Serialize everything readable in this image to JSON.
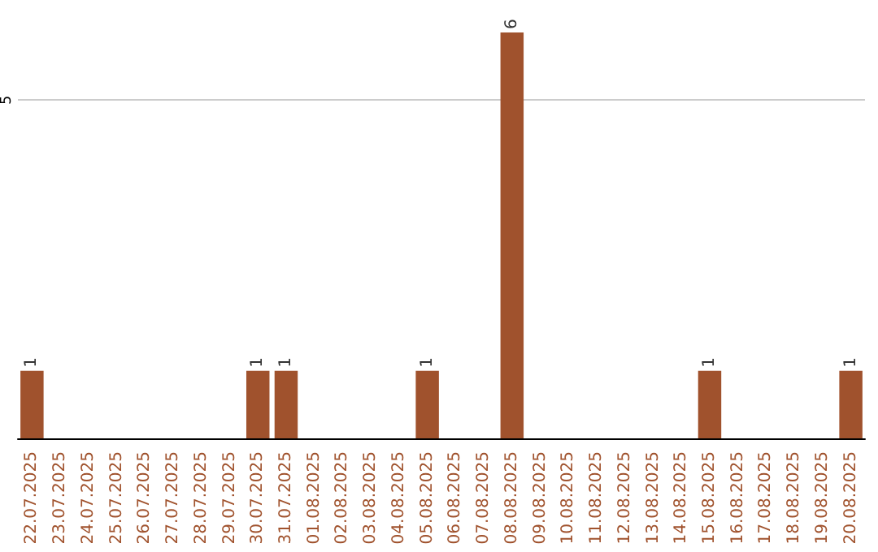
{
  "chart_data": {
    "type": "bar",
    "categories": [
      "22.07.2025",
      "23.07.2025",
      "24.07.2025",
      "25.07.2025",
      "26.07.2025",
      "27.07.2025",
      "28.07.2025",
      "29.07.2025",
      "30.07.2025",
      "31.07.2025",
      "01.08.2025",
      "02.08.2025",
      "03.08.2025",
      "04.08.2025",
      "05.08.2025",
      "06.08.2025",
      "07.08.2025",
      "08.08.2025",
      "09.08.2025",
      "10.08.2025",
      "11.08.2025",
      "12.08.2025",
      "13.08.2025",
      "14.08.2025",
      "15.08.2025",
      "16.08.2025",
      "17.08.2025",
      "18.08.2025",
      "19.08.2025",
      "20.08.2025"
    ],
    "values": [
      1,
      0,
      0,
      0,
      0,
      0,
      0,
      0,
      1,
      1,
      0,
      0,
      0,
      0,
      1,
      0,
      0,
      6,
      0,
      0,
      0,
      0,
      0,
      0,
      1,
      0,
      0,
      0,
      0,
      1
    ],
    "color": "#a0522d",
    "value_labels": [
      "1",
      null,
      null,
      null,
      null,
      null,
      null,
      null,
      "1",
      "1",
      null,
      null,
      null,
      null,
      "1",
      null,
      null,
      "6",
      null,
      null,
      null,
      null,
      null,
      null,
      "1",
      null,
      null,
      null,
      null,
      "1"
    ],
    "ylim": [
      0,
      6
    ],
    "yticks": [
      5
    ],
    "grid": "y"
  }
}
